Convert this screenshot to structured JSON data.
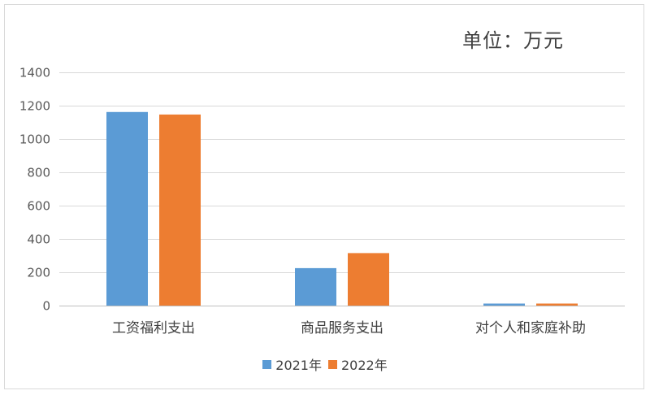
{
  "unit_label": "单位：万元",
  "chart_data": {
    "type": "bar",
    "title": "",
    "xlabel": "",
    "ylabel": "",
    "categories": [
      "工资福利支出",
      "商品服务支出",
      "对个人和家庭补助"
    ],
    "series": [
      {
        "name": "2021年",
        "color": "#5b9bd5",
        "values": [
          1162,
          225,
          12
        ]
      },
      {
        "name": "2022年",
        "color": "#ed7d31",
        "values": [
          1147,
          315,
          12
        ]
      }
    ],
    "ylim": [
      0,
      1400
    ],
    "yticks": [
      0,
      200,
      400,
      600,
      800,
      1000,
      1200,
      1400
    ],
    "grid": true,
    "legend": "bottom"
  }
}
